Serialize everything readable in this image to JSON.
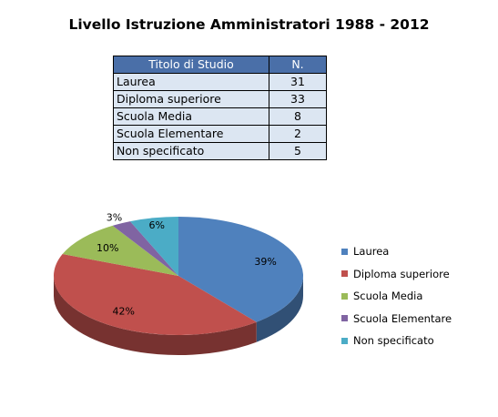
{
  "title": "Livello Istruzione Amministratori 1988 - 2012",
  "table": {
    "headers": [
      "Titolo di Studio",
      "N."
    ],
    "rows": [
      [
        "Laurea",
        "31"
      ],
      [
        "Diploma superiore",
        "33"
      ],
      [
        "Scuola Media",
        "8"
      ],
      [
        "Scuola Elementare",
        "2"
      ],
      [
        "Non specificato",
        "5"
      ]
    ]
  },
  "chart_data": {
    "type": "pie",
    "categories": [
      "Laurea",
      "Diploma superiore",
      "Scuola Media",
      "Scuola Elementare",
      "Non specificato"
    ],
    "values": [
      31,
      33,
      8,
      2,
      5
    ],
    "percent_labels": [
      "39%",
      "42%",
      "10%",
      "3%",
      "6%"
    ],
    "colors": [
      "#4f81bd",
      "#c0504d",
      "#9bbb59",
      "#8064a2",
      "#4bacc6"
    ],
    "style": "3d",
    "legend_position": "right"
  }
}
